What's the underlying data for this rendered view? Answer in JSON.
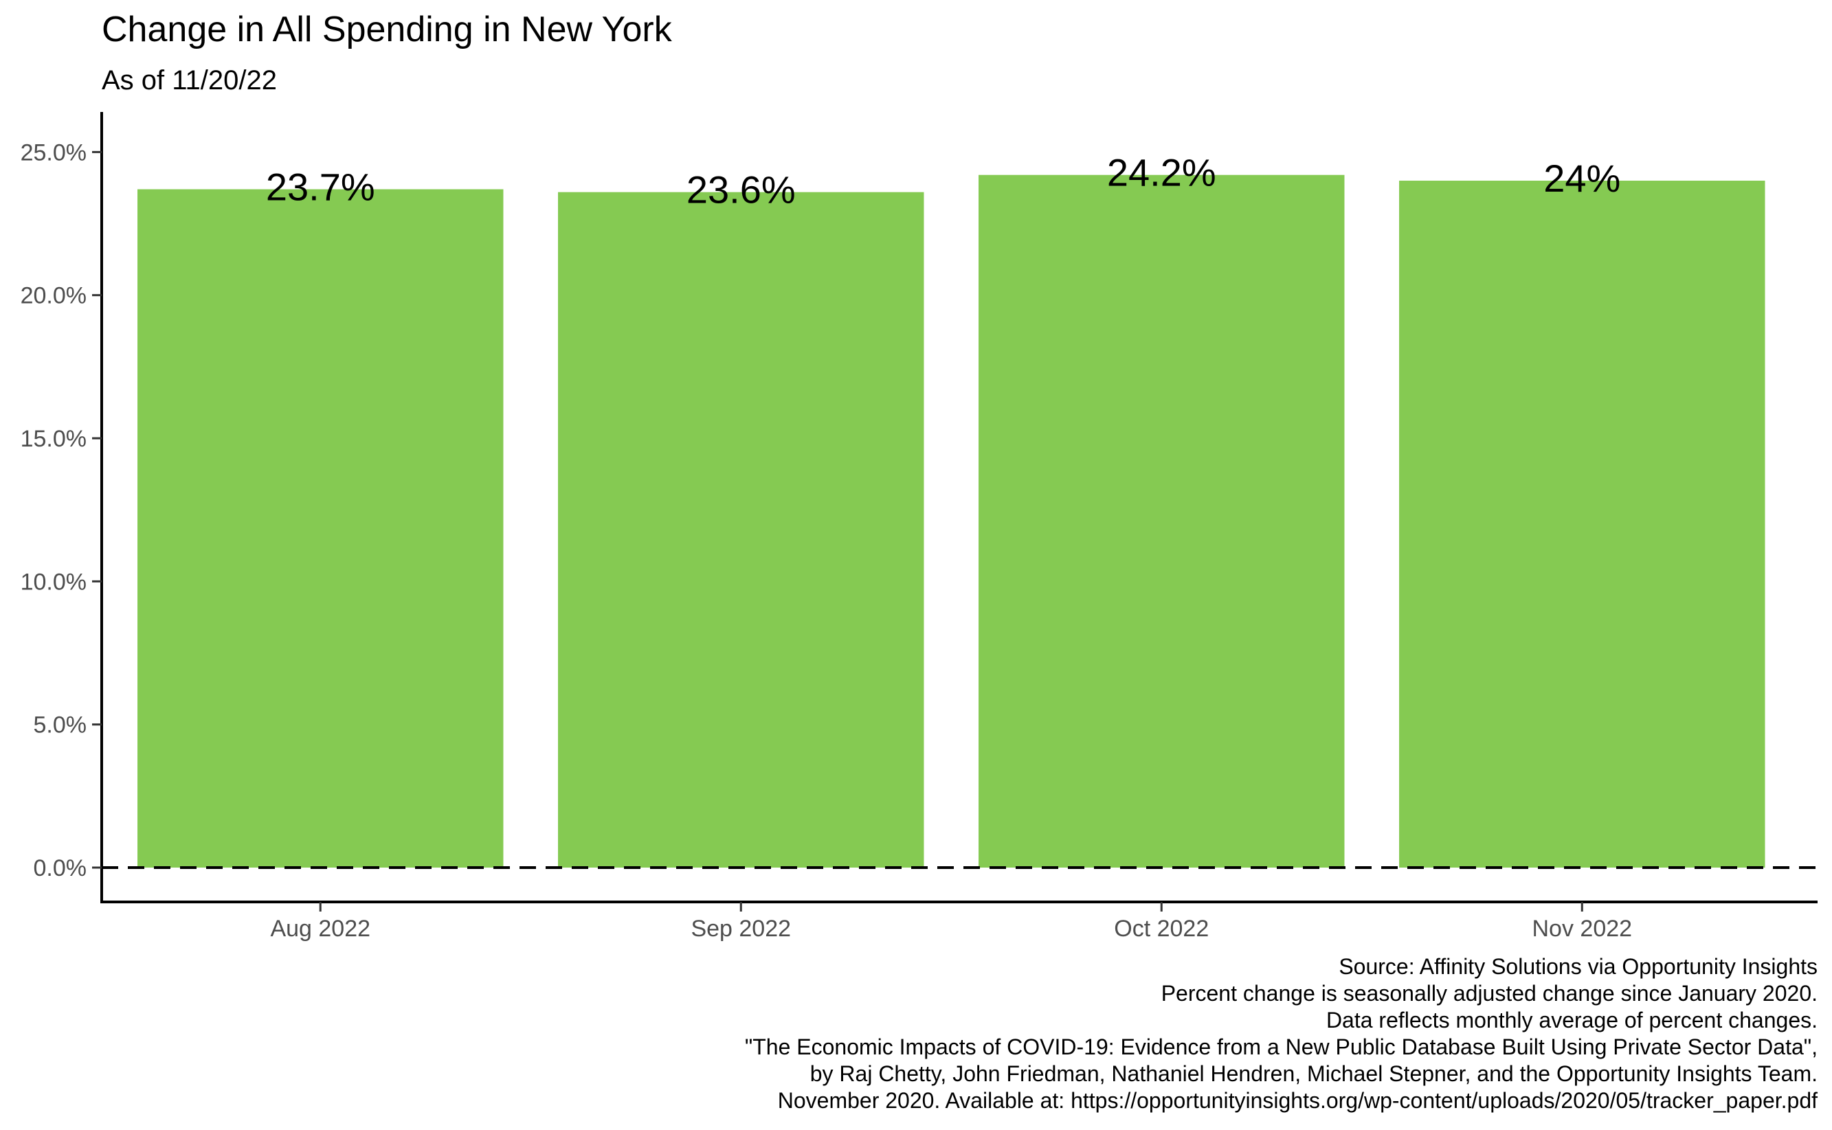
{
  "chart_data": {
    "type": "bar",
    "title": "Change in All Spending in New York",
    "subtitle": "As of 11/20/22",
    "categories": [
      "Aug 2022",
      "Sep 2022",
      "Oct 2022",
      "Nov 2022"
    ],
    "values": [
      23.7,
      23.6,
      24.2,
      24.0
    ],
    "data_labels": [
      "23.7%",
      "23.6%",
      "24.2%",
      "24%"
    ],
    "xlabel": "",
    "ylabel": "",
    "ylim": [
      -1.2,
      26.4
    ],
    "yticks": [
      0,
      5,
      10,
      15,
      20,
      25
    ],
    "ytick_labels": [
      "0.0%",
      "5.0%",
      "10.0%",
      "15.0%",
      "20.0%",
      "25.0%"
    ],
    "reference_line": {
      "y": 0,
      "style": "dashed"
    },
    "bar_color": "#85CA52",
    "grid": false,
    "legend": "none",
    "caption": [
      "Source: Affinity Solutions via Opportunity Insights",
      "Percent change is seasonally adjusted change since January 2020.",
      "Data reflects monthly average of percent changes.",
      "\"The Economic Impacts of COVID-19: Evidence from a New Public Database Built Using Private Sector Data\",",
      "by Raj Chetty, John Friedman, Nathaniel Hendren, Michael Stepner, and the Opportunity Insights Team.",
      "November 2020. Available at: https://opportunityinsights.org/wp-content/uploads/2020/05/tracker_paper.pdf"
    ]
  }
}
